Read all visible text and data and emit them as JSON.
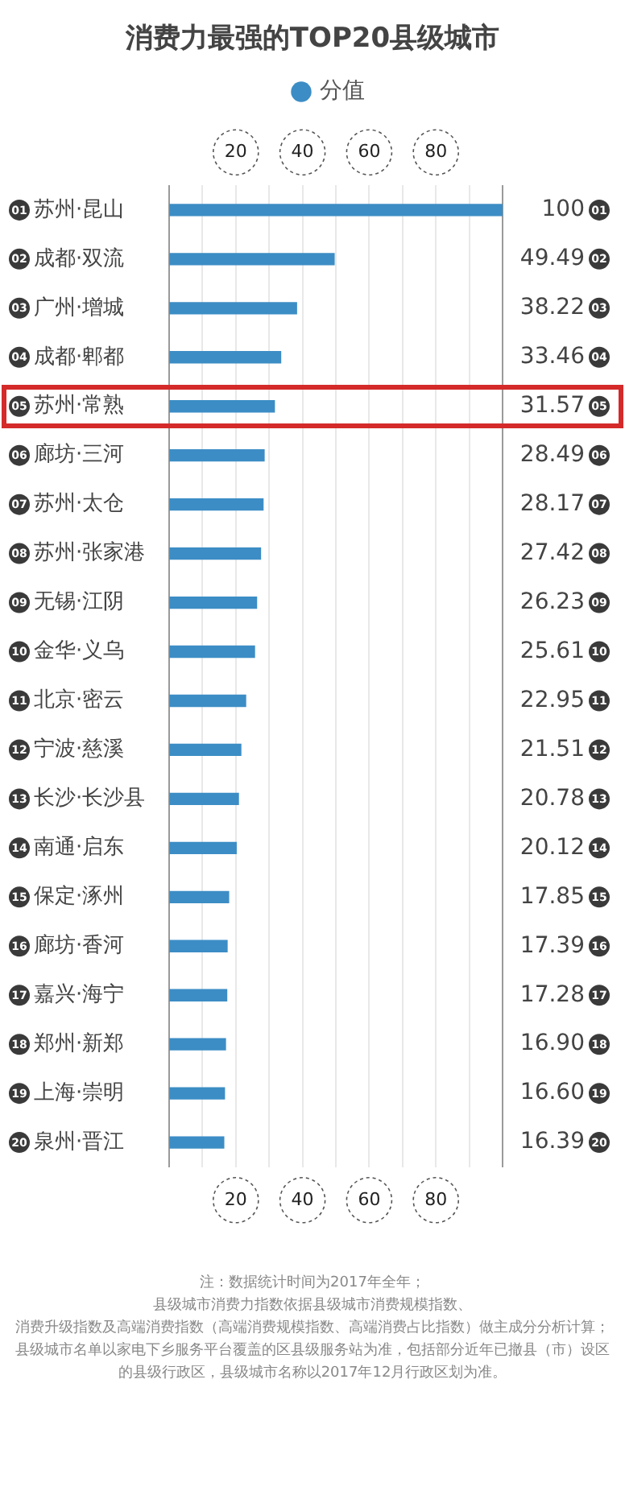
{
  "chart_data": {
    "type": "bar",
    "orientation": "horizontal",
    "title": "消费力最强的TOP20县级城市",
    "categories": [
      "01 苏州·昆山",
      "02 成都·双流",
      "03 广州·增城",
      "04 成都·郫都",
      "05 苏州·常熟",
      "06 廊坊·三河",
      "07 苏州·太仓",
      "08 苏州·张家港",
      "09 无锡·江阴",
      "10 金华·义乌",
      "11 北京·密云",
      "12 宁波·慈溪",
      "13 长沙·长沙县",
      "14 南通·启东",
      "15 保定·涿州",
      "16 廊坊·香河",
      "17 嘉兴·海宁",
      "18 郑州·新郑",
      "19 上海·崇明",
      "20 泉州·晋江"
    ],
    "series": [
      {
        "name": "分值",
        "color": "#3c8dc5",
        "values": [
          100,
          49.49,
          38.22,
          33.46,
          31.57,
          28.49,
          28.17,
          27.42,
          26.23,
          25.61,
          22.95,
          21.51,
          20.78,
          20.12,
          17.85,
          17.39,
          17.28,
          16.9,
          16.6,
          16.39
        ],
        "value_labels": [
          "100 01",
          "49.49 02",
          "38.22 03",
          "33.46 04",
          "31.57 05",
          "28.49 06",
          "28.17 07",
          "27.42 08",
          "26.23 09",
          "25.61 10",
          "22.95 11",
          "21.51 12",
          "20.78 13",
          "20.12 14",
          "17.85 15",
          "17.39 16",
          "17.28 17",
          "16.90 18",
          "16.60 19",
          "16.39 20"
        ]
      }
    ],
    "xlim": [
      0,
      100
    ],
    "xticks": [
      {
        "value": 0,
        "label": null
      },
      {
        "value": 10,
        "label": null
      },
      20,
      {
        "value": 30,
        "label": null
      },
      40,
      {
        "value": 50,
        "label": null
      },
      60,
      {
        "value": 70,
        "label": null
      },
      80,
      {
        "value": 90,
        "label": null
      },
      {
        "value": 100,
        "label": null
      }
    ],
    "x2lim": [
      0,
      100
    ],
    "x2ticks": [
      {
        "value": 0,
        "label": null
      },
      {
        "value": 10,
        "label": null
      },
      20,
      {
        "value": 30,
        "label": null
      },
      40,
      {
        "value": 50,
        "label": null
      },
      60,
      {
        "value": 70,
        "label": null
      },
      80,
      {
        "value": 90,
        "label": null
      },
      {
        "value": 100,
        "label": null
      }
    ],
    "grid": "x",
    "legend": "top",
    "annotations": [
      "注：数据统计时间为2017年全年；",
      "县级城市消费力指数依据县级城市消费规模指数、",
      "消费升级指数及高端消费指数（高端消费规模指数、高端消费占比指数）做主成分分析计算；",
      "县级城市名单以家电下乡服务平台覆盖的区县级服务站为准，包括部分近年已撤县（市）设区的县级行政区，县级城市名称以2017年12月行政区划为准。"
    ]
  }
}
